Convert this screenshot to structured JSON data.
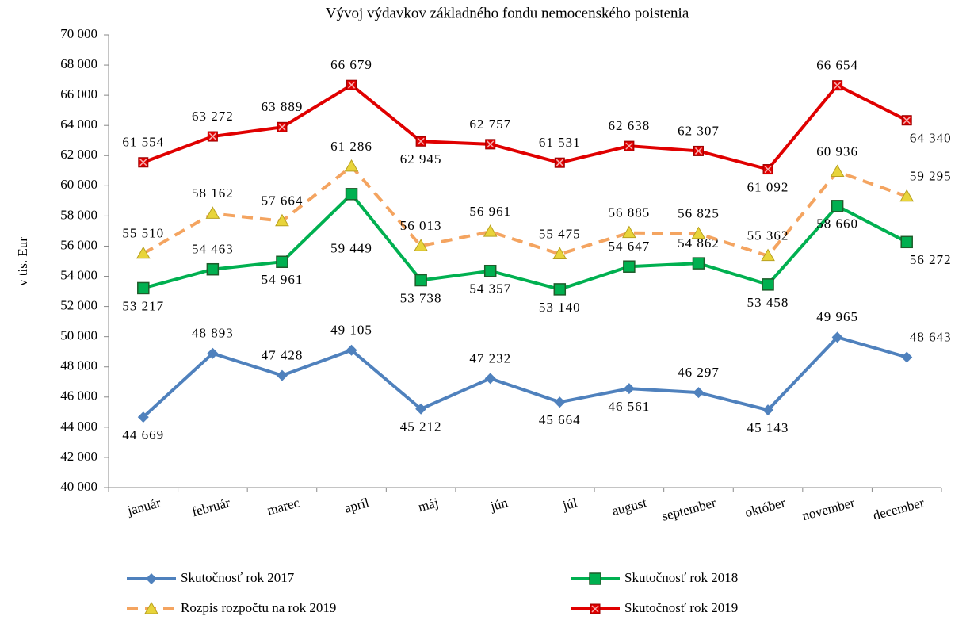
{
  "chart_data": {
    "type": "line",
    "title": "Vývoj výdavkov základného fondu nemocenského poistenia",
    "y_label": "v tis. Eur",
    "categories": [
      "január",
      "február",
      "marec",
      "apríl",
      "máj",
      "jún",
      "júl",
      "august",
      "september",
      "október",
      "november",
      "december"
    ],
    "ylim": [
      40000,
      70000
    ],
    "yticks": [
      {
        "value": 40000,
        "label": "40 000"
      },
      {
        "value": 42000,
        "label": "42 000"
      },
      {
        "value": 44000,
        "label": "44 000"
      },
      {
        "value": 46000,
        "label": "46 000"
      },
      {
        "value": 48000,
        "label": "48 000"
      },
      {
        "value": 50000,
        "label": "50 000"
      },
      {
        "value": 52000,
        "label": "52 000"
      },
      {
        "value": 54000,
        "label": "54 000"
      },
      {
        "value": 56000,
        "label": "56 000"
      },
      {
        "value": 58000,
        "label": "58 000"
      },
      {
        "value": 60000,
        "label": "60 000"
      },
      {
        "value": 62000,
        "label": "62 000"
      },
      {
        "value": 64000,
        "label": "64 000"
      },
      {
        "value": 66000,
        "label": "66 000"
      },
      {
        "value": 68000,
        "label": "68 000"
      },
      {
        "value": 70000,
        "label": "70 000"
      }
    ],
    "legend": "bottom",
    "series": [
      {
        "name": "Skutočnosť rok 2017",
        "color": "#4f81bd",
        "label_color": "#2e75b6",
        "marker": "diamond",
        "linestyle": "solid",
        "values": [
          44669,
          48893,
          47428,
          49105,
          45212,
          47232,
          45664,
          46561,
          46297,
          45143,
          49965,
          48643
        ],
        "value_labels": [
          "44 669",
          "48 893",
          "47 428",
          "49 105",
          "45 212",
          "47 232",
          "45 664",
          "46 561",
          "46 297",
          "45 143",
          "49 965",
          "48 643"
        ]
      },
      {
        "name": "Skutočnosť rok 2018",
        "color": "#00b050",
        "label_color": "#00a050",
        "marker": "square",
        "linestyle": "solid",
        "values": [
          53217,
          54463,
          54961,
          59449,
          53738,
          54357,
          53140,
          54647,
          54862,
          53458,
          58660,
          56272
        ],
        "value_labels": [
          "53 217",
          "54 463",
          "54 961",
          "59 449",
          "53 738",
          "54 357",
          "53 140",
          "54 647",
          "54 862",
          "53 458",
          "58 660",
          "56 272"
        ]
      },
      {
        "name": "Rozpis rozpočtu na rok 2019",
        "color": "#f4a460",
        "label_color": "#e59a3a",
        "marker": "triangle",
        "linestyle": "dashed",
        "values": [
          55510,
          58162,
          57664,
          61286,
          56013,
          56961,
          55475,
          56885,
          56825,
          55362,
          60936,
          59295
        ],
        "value_labels": [
          "55 510",
          "58 162",
          "57 664",
          "61 286",
          "56 013",
          "56 961",
          "55 475",
          "56 885",
          "56 825",
          "55 362",
          "60 936",
          "59 295"
        ]
      },
      {
        "name": "Skutočnosť rok 2019",
        "color": "#e00000",
        "label_color": "#d62020",
        "marker": "xsquare",
        "linestyle": "solid",
        "values": [
          61554,
          63272,
          63889,
          66679,
          62945,
          62757,
          61531,
          62638,
          62307,
          61092,
          66654,
          64340
        ],
        "value_labels": [
          "61 554",
          "63 272",
          "63 889",
          "66 679",
          "62 945",
          "62 757",
          "61 531",
          "62 638",
          "62 307",
          "61 092",
          "66 654",
          "64 340"
        ]
      }
    ]
  }
}
